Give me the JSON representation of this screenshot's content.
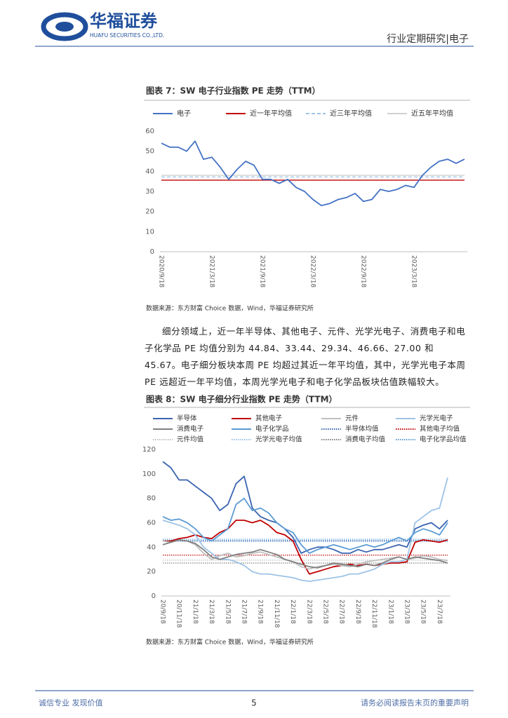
{
  "header": {
    "logo_cn": "华福证券",
    "logo_en": "HUAFU SECURITIES CO.,LTD.",
    "report_type": "行业定期研究|电子"
  },
  "chart_data": [
    {
      "type": "line",
      "title": "图表 7：SW 电子行业指数 PE 走势（TTM）",
      "categories": [
        "2020/9/18",
        null,
        null,
        null,
        null,
        null,
        "2021/3/18",
        null,
        null,
        null,
        null,
        null,
        "2021/9/18",
        null,
        null,
        null,
        null,
        null,
        "2022/3/18",
        null,
        null,
        null,
        null,
        null,
        "2022/9/18",
        null,
        null,
        null,
        null,
        null,
        "2023/3/18",
        null,
        null,
        null,
        null,
        null,
        null
      ],
      "series": [
        {
          "name": "电子",
          "color": "#4472c4",
          "values": [
            54,
            52,
            52,
            50,
            55,
            46,
            47,
            42,
            36,
            41,
            45,
            43,
            36,
            36,
            34,
            36,
            32,
            30,
            26,
            23,
            24,
            26,
            27,
            29,
            25,
            26,
            31,
            30,
            31,
            33,
            32,
            38,
            42,
            45,
            46,
            44,
            46
          ]
        }
      ],
      "reference_lines": [
        {
          "name": "近一年平均值",
          "color": "#c00000",
          "style": "solid",
          "value": 35.6
        },
        {
          "name": "近三年平均值",
          "color": "#9dc3e6",
          "style": "dashed",
          "value": 37.2
        },
        {
          "name": "近五年平均值",
          "color": "#d0d0d0",
          "style": "solid",
          "value": 38
        }
      ],
      "ylim": [
        0,
        60
      ],
      "yticks": [
        0,
        10,
        20,
        30,
        40,
        50,
        60
      ],
      "grid": false,
      "note": "数据来源：东方财富 Choice 数据，Wind，华福证券研究所"
    },
    {
      "type": "line",
      "title": "图表 8：SW 电子细分行业指数 PE 走势（TTM）",
      "categories": [
        "20/9/18",
        null,
        "20/11/18",
        null,
        "21/1/18",
        null,
        "21/3/18",
        null,
        "21/5/18",
        null,
        "21/7/18",
        null,
        "21/9/18",
        null,
        "21/11/18",
        null,
        "22/1/18",
        null,
        "22/3/18",
        null,
        "22/5/18",
        null,
        "22/7/18",
        null,
        "22/9/18",
        null,
        "22/11/18",
        null,
        "23/1/18",
        null,
        "23/3/18",
        null,
        "23/5/18",
        null,
        "23/7/18",
        null
      ],
      "series": [
        {
          "name": "半导体",
          "color": "#3a64b0",
          "values": [
            110,
            105,
            95,
            95,
            90,
            85,
            80,
            70,
            75,
            92,
            98,
            72,
            65,
            62,
            60,
            55,
            48,
            35,
            38,
            40,
            40,
            38,
            35,
            35,
            38,
            36,
            38,
            38,
            40,
            42,
            40,
            55,
            58,
            60,
            55,
            62
          ]
        },
        {
          "name": "其他电子",
          "color": "#c00000",
          "values": [
            45,
            45,
            47,
            48,
            50,
            48,
            47,
            52,
            55,
            62,
            62,
            60,
            62,
            58,
            52,
            50,
            45,
            30,
            18,
            20,
            22,
            24,
            25,
            26,
            25,
            26,
            25,
            26,
            27,
            27,
            28,
            44,
            46,
            45,
            44,
            46
          ]
        },
        {
          "name": "元件",
          "color": "#bfbfbf",
          "values": [
            45,
            44,
            46,
            45,
            42,
            35,
            30,
            33,
            35,
            32,
            33,
            35,
            36,
            34,
            32,
            30,
            28,
            24,
            22,
            24,
            25,
            26,
            25,
            24,
            26,
            28,
            29,
            30,
            31,
            32,
            30,
            31,
            33,
            32,
            30,
            29
          ]
        },
        {
          "name": "光学光电子",
          "color": "#9dc3e6",
          "values": [
            62,
            60,
            58,
            55,
            50,
            40,
            35,
            30,
            30,
            28,
            25,
            20,
            18,
            18,
            17,
            16,
            15,
            13,
            12,
            13,
            14,
            15,
            16,
            18,
            18,
            20,
            22,
            26,
            28,
            28,
            30,
            60,
            65,
            70,
            72,
            97
          ]
        },
        {
          "name": "消费电子",
          "color": "#808080",
          "values": [
            42,
            44,
            46,
            45,
            43,
            38,
            32,
            30,
            32,
            34,
            35,
            36,
            38,
            36,
            34,
            30,
            28,
            26,
            24,
            23,
            25,
            27,
            26,
            25,
            24,
            26,
            25,
            27,
            30,
            32,
            30,
            32,
            31,
            30,
            29,
            27
          ]
        },
        {
          "name": "电子化学品",
          "color": "#5b9bd5",
          "values": [
            65,
            62,
            63,
            60,
            55,
            48,
            45,
            50,
            55,
            75,
            80,
            70,
            72,
            68,
            60,
            55,
            52,
            42,
            35,
            38,
            40,
            42,
            40,
            38,
            40,
            42,
            40,
            42,
            45,
            48,
            45,
            52,
            55,
            53,
            50,
            60
          ]
        }
      ],
      "reference_lines": [
        {
          "name": "半导体均值",
          "color": "#3a64b0",
          "style": "dotted",
          "value": 44.84
        },
        {
          "name": "其他电子均值",
          "color": "#c00000",
          "style": "dotted",
          "value": 33.44
        },
        {
          "name": "元件均值",
          "color": "#bfbfbf",
          "style": "dotted",
          "value": 29.34
        },
        {
          "name": "光学光电子均值",
          "color": "#9dc3e6",
          "style": "dotted",
          "value": 46.66
        },
        {
          "name": "消费电子均值",
          "color": "#808080",
          "style": "dotted",
          "value": 27.0
        },
        {
          "name": "电子化学品均值",
          "color": "#5b9bd5",
          "style": "dotted",
          "value": 45.67
        }
      ],
      "ylim": [
        0,
        120
      ],
      "yticks": [
        0,
        20,
        40,
        60,
        80,
        100,
        120
      ],
      "grid": false,
      "note": "数据来源：东方财富 Choice 数据，Wind，华福证券研究所"
    }
  ],
  "paragraph": "细分领域上，近一年半导体、其他电子、元件、光学光电子、消费电子和电子化学品 PE 均值分别为 44.84、33.44、29.34、46.66、27.00 和 45.67。电子细分板块本周 PE 均超过其近一年平均值，其中，光学光电子本周 PE 远超近一年平均值，本周光学光电子和电子化学品板块估值跌幅较大。",
  "footer": {
    "left": "诚信专业  发现价值",
    "page": "5",
    "right": "请务必阅读报告末页的重要声明"
  }
}
